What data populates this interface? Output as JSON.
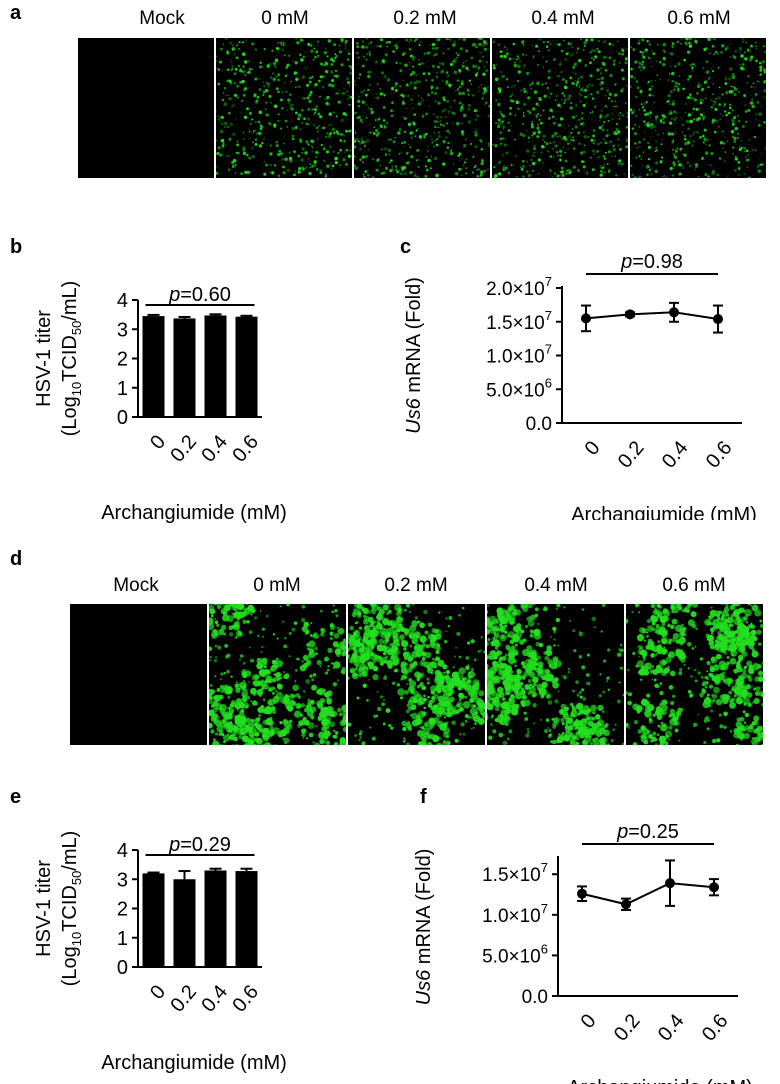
{
  "panels": {
    "a": {
      "letter": "a",
      "images": [
        {
          "label": "Mock",
          "density": 0,
          "blob": 0
        },
        {
          "label": "0 mM",
          "density": 1,
          "blob": 0
        },
        {
          "label": "0.2 mM",
          "density": 1,
          "blob": 0
        },
        {
          "label": "0.4 mM",
          "density": 1,
          "blob": 0
        },
        {
          "label": "0.6 mM",
          "density": 1,
          "blob": 0
        }
      ]
    },
    "d": {
      "letter": "d",
      "images": [
        {
          "label": "Mock",
          "density": 0,
          "blob": 1
        },
        {
          "label": "0 mM",
          "density": 1,
          "blob": 1
        },
        {
          "label": "0.2 mM",
          "density": 1,
          "blob": 1
        },
        {
          "label": "0.4 mM",
          "density": 1,
          "blob": 1
        },
        {
          "label": "0.6 mM",
          "density": 1,
          "blob": 1
        }
      ]
    },
    "b": {
      "letter": "b"
    },
    "c": {
      "letter": "c"
    },
    "e": {
      "letter": "e"
    },
    "f": {
      "letter": "f"
    }
  },
  "colors": {
    "fluorescence": "#22e01e",
    "bar": "#000000"
  },
  "chart_data": [
    {
      "id": "b",
      "type": "bar",
      "categories": [
        "0",
        "0.2",
        "0.4",
        "0.6"
      ],
      "values": [
        3.45,
        3.37,
        3.47,
        3.43
      ],
      "errors": [
        0.04,
        0.05,
        0.04,
        0.03
      ],
      "ylabel_line1": "HSV-1 titer",
      "ylabel_line2": [
        "(Log",
        "10",
        "TCID",
        "50",
        "/mL)"
      ],
      "xlabel": "Archangiumide (mM)",
      "ylim": [
        0,
        4
      ],
      "yticks": [
        "0",
        "1",
        "2",
        "3",
        "4"
      ],
      "annotation": {
        "p": "p",
        "rest": "=0.60"
      }
    },
    {
      "id": "c",
      "type": "line",
      "categories": [
        "0",
        "0.2",
        "0.4",
        "0.6"
      ],
      "values": [
        15500000,
        16100000,
        16400000,
        15400000
      ],
      "errors": [
        1900000,
        300000,
        1400000,
        2000000
      ],
      "ylabel_italic": "Us6",
      "ylabel_rest": " mRNA (Fold)",
      "xlabel": "Archangiumide (mM)",
      "ylim": [
        0,
        20000000
      ],
      "yticks": [
        {
          "mant": "0.0",
          "exp": ""
        },
        {
          "mant": "5.0×10",
          "exp": "6"
        },
        {
          "mant": "1.0×10",
          "exp": "7"
        },
        {
          "mant": "1.5×10",
          "exp": "7"
        },
        {
          "mant": "2.0×10",
          "exp": "7"
        }
      ],
      "annotation": {
        "p": "p",
        "rest": "=0.98"
      }
    },
    {
      "id": "e",
      "type": "bar",
      "categories": [
        "0",
        "0.2",
        "0.4",
        "0.6"
      ],
      "values": [
        3.2,
        3.0,
        3.3,
        3.28
      ],
      "errors": [
        0.03,
        0.28,
        0.06,
        0.08
      ],
      "ylabel_line1": "HSV-1 titer",
      "ylabel_line2": [
        "(Log",
        "10",
        "TCID",
        "50",
        "/mL)"
      ],
      "xlabel": "Archangiumide (mM)",
      "ylim": [
        0,
        4
      ],
      "yticks": [
        "0",
        "1",
        "2",
        "3",
        "4"
      ],
      "annotation": {
        "p": "p",
        "rest": "=0.29"
      }
    },
    {
      "id": "f",
      "type": "line",
      "categories": [
        "0",
        "0.2",
        "0.4",
        "0.6"
      ],
      "values": [
        12600000,
        11300000,
        13900000,
        13400000
      ],
      "errors": [
        900000,
        700000,
        2800000,
        1000000
      ],
      "ylabel_italic": "Us6",
      "ylabel_rest": " mRNA (Fold)",
      "xlabel": "Archangiumide (mM)",
      "ylim": [
        0,
        17000000
      ],
      "yticks": [
        {
          "mant": "0.0",
          "exp": ""
        },
        {
          "mant": "5.0×10",
          "exp": "6"
        },
        {
          "mant": "1.0×10",
          "exp": "7"
        },
        {
          "mant": "1.5×10",
          "exp": "7"
        }
      ],
      "tick_values": [
        0,
        5000000,
        10000000,
        15000000
      ],
      "annotation": {
        "p": "p",
        "rest": "=0.25"
      }
    }
  ]
}
